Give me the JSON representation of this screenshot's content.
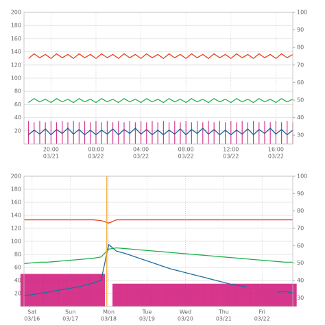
{
  "chart_data": [
    {
      "type": "line",
      "x": [
        18,
        18.5,
        19,
        19.5,
        20,
        20.5,
        21,
        21.5,
        22,
        22.5,
        23,
        23.5,
        24,
        24.5,
        25,
        25.5,
        26,
        26.5,
        27,
        27.5,
        28,
        28.5,
        29,
        29.5,
        30,
        30.5,
        31,
        31.5,
        32,
        32.5,
        33,
        33.5,
        34,
        34.5,
        35,
        35.5,
        36,
        36.5,
        37,
        37.5,
        38,
        38.5,
        39,
        39.5,
        40,
        40.5,
        41,
        41.5
      ],
      "xlim": [
        17.6,
        41.5
      ],
      "xticks": [
        {
          "value": 20,
          "label": "20:00",
          "date": "03/21"
        },
        {
          "value": 24,
          "label": "00:00",
          "date": "03/22"
        },
        {
          "value": 28,
          "label": "04:00",
          "date": "03/22"
        },
        {
          "value": 32,
          "label": "08:00",
          "date": "03/22"
        },
        {
          "value": 36,
          "label": "12:00",
          "date": "03/22"
        },
        {
          "value": 40,
          "label": "16:00",
          "date": "03/22"
        }
      ],
      "ylim": [
        0,
        200
      ],
      "yticks": [
        20,
        40,
        60,
        80,
        100,
        120,
        140,
        160,
        180,
        200
      ],
      "y2lim": [
        25,
        100
      ],
      "y2ticks": [
        30,
        40,
        50,
        60,
        70,
        80,
        90,
        100
      ],
      "grid": true,
      "series": [
        {
          "style": "spike",
          "color": "#d0157a",
          "values": [
            35,
            33,
            35,
            33,
            35,
            33,
            35,
            33,
            35,
            33,
            35,
            33,
            35,
            33,
            35,
            33,
            35,
            33,
            35,
            33,
            35,
            33,
            35,
            33,
            35,
            33,
            35,
            33,
            35,
            33,
            35,
            33,
            35,
            33,
            35,
            33,
            35,
            33,
            35,
            33,
            35,
            33,
            35,
            33,
            35,
            33,
            35,
            33
          ]
        },
        {
          "style": "line",
          "color": "#e8401c",
          "values": [
            130,
            137,
            131,
            136,
            130,
            137,
            131,
            136,
            130,
            137,
            131,
            136,
            130,
            137,
            131,
            136,
            130,
            137,
            131,
            136,
            130,
            137,
            131,
            136,
            130,
            137,
            131,
            136,
            130,
            137,
            131,
            136,
            130,
            137,
            131,
            136,
            130,
            137,
            131,
            136,
            130,
            137,
            131,
            136,
            130,
            137,
            131,
            136
          ]
        },
        {
          "style": "line",
          "color": "#1cb04a",
          "values": [
            63,
            69,
            64,
            68,
            63,
            69,
            64,
            68,
            63,
            69,
            64,
            68,
            63,
            69,
            64,
            68,
            63,
            69,
            64,
            68,
            63,
            69,
            64,
            68,
            63,
            69,
            64,
            68,
            63,
            69,
            64,
            68,
            63,
            69,
            64,
            68,
            63,
            69,
            64,
            68,
            63,
            69,
            64,
            68,
            63,
            69,
            64,
            68
          ]
        },
        {
          "style": "line",
          "color": "#1a5f96",
          "values": [
            14,
            21,
            15,
            23,
            14,
            22,
            16,
            24,
            15,
            22,
            14,
            21,
            14,
            21,
            15,
            23,
            14,
            22,
            16,
            24,
            15,
            22,
            14,
            21,
            14,
            21,
            15,
            23,
            14,
            22,
            16,
            24,
            15,
            22,
            14,
            21,
            14,
            21,
            15,
            23,
            14,
            22,
            16,
            24,
            15,
            22,
            14,
            21
          ]
        }
      ]
    },
    {
      "type": "line",
      "x": [
        -0.2,
        0,
        0.2,
        0.4,
        0.6,
        0.8,
        1,
        1.2,
        1.4,
        1.6,
        1.8,
        2,
        2.2,
        2.4,
        2.6,
        2.8,
        3,
        3.2,
        3.4,
        3.6,
        3.8,
        4,
        4.2,
        4.4,
        4.6,
        4.8,
        5,
        5.2,
        5.4,
        5.6,
        5.8,
        6,
        6.2,
        6.4,
        6.6,
        6.8
      ],
      "xlim": [
        -0.21,
        6.8
      ],
      "xticks": [
        {
          "value": 0,
          "label": "Sat",
          "date": "03/16"
        },
        {
          "value": 1,
          "label": "Sun",
          "date": "03/17"
        },
        {
          "value": 2,
          "label": "Mon",
          "date": "03/18"
        },
        {
          "value": 3,
          "label": "Tue",
          "date": "03/19"
        },
        {
          "value": 4,
          "label": "Wed",
          "date": "03/20"
        },
        {
          "value": 5,
          "label": "Thu",
          "date": "03/21"
        },
        {
          "value": 6,
          "label": "Fri",
          "date": "03/22"
        }
      ],
      "ylim": [
        0,
        200
      ],
      "yticks": [
        20,
        40,
        60,
        80,
        100,
        120,
        140,
        160,
        180,
        200
      ],
      "y2lim": [
        25,
        100
      ],
      "y2ticks": [
        30,
        40,
        50,
        60,
        70,
        80,
        90,
        100
      ],
      "grid": true,
      "series": [
        {
          "style": "spike",
          "color": "#d0157a",
          "values": [
            50,
            50,
            50,
            50,
            50,
            50,
            50,
            50,
            50,
            50,
            50,
            null,
            35,
            35,
            35,
            35,
            35,
            35,
            35,
            35,
            35,
            35,
            35,
            35,
            35,
            35,
            35,
            35,
            35,
            35,
            35,
            35,
            35,
            35,
            35,
            35
          ]
        },
        {
          "style": "line",
          "color": "#e8401c",
          "values": [
            133,
            133,
            133,
            133,
            133,
            133,
            133,
            133,
            133,
            133,
            132,
            128,
            133,
            133,
            133,
            133,
            133,
            133,
            133,
            133,
            133,
            133,
            133,
            133,
            133,
            133,
            133,
            133,
            133,
            133,
            133,
            133,
            133,
            133,
            133,
            133
          ]
        },
        {
          "style": "line",
          "color": "#1cb04a",
          "values": [
            66,
            67,
            68,
            68,
            69,
            70,
            71,
            72,
            73,
            74,
            76,
            88,
            90,
            89,
            88,
            87,
            86,
            85,
            84,
            83,
            82,
            81,
            80,
            79,
            78,
            77,
            76,
            75,
            74,
            73,
            72,
            71,
            70,
            69,
            68,
            68
          ]
        },
        {
          "style": "line",
          "color": "#1a6fa0",
          "values": [
            17,
            18,
            20,
            22,
            24,
            26,
            28,
            30,
            33,
            36,
            40,
            95,
            85,
            82,
            78,
            74,
            70,
            66,
            62,
            58,
            55,
            52,
            49,
            46,
            43,
            40,
            37,
            34,
            32,
            30,
            null,
            null,
            null,
            22,
            23,
            21
          ]
        },
        {
          "style": "spike",
          "color": "#f5a623",
          "x": [
            1.95
          ],
          "values": [
            200
          ]
        }
      ]
    }
  ]
}
